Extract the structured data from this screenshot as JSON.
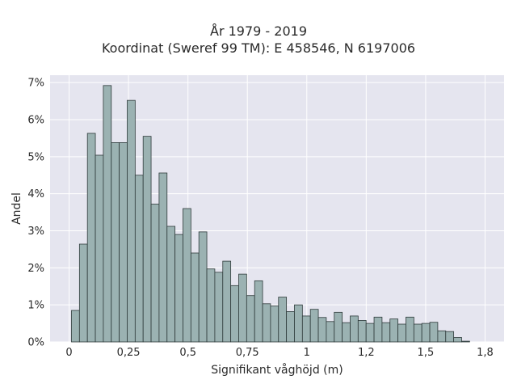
{
  "chart_data": {
    "type": "bar",
    "title": "År 1979 - 2019",
    "subtitle": "Koordinat (Sweref 99 TM): E 458546, N 6197006",
    "xlabel": "Signifikant våghöjd (m)",
    "ylabel": "Andel",
    "xlim": [
      -0.08,
      1.83
    ],
    "ylim": [
      0,
      7.2
    ],
    "grid": true,
    "bin_width": 0.0335,
    "bin_start": 0.01,
    "x_ticks": [
      {
        "value": 0,
        "label": "0"
      },
      {
        "value": 0.25,
        "label": "0,25"
      },
      {
        "value": 0.5,
        "label": "0,5"
      },
      {
        "value": 0.75,
        "label": "0,75"
      },
      {
        "value": 1,
        "label": "1"
      },
      {
        "value": 1.25,
        "label": "1,2"
      },
      {
        "value": 1.5,
        "label": "1,5"
      },
      {
        "value": 1.75,
        "label": "1,8"
      }
    ],
    "y_ticks": [
      {
        "value": 0,
        "label": "0%"
      },
      {
        "value": 1,
        "label": "1%"
      },
      {
        "value": 2,
        "label": "2%"
      },
      {
        "value": 3,
        "label": "3%"
      },
      {
        "value": 4,
        "label": "4%"
      },
      {
        "value": 5,
        "label": "5%"
      },
      {
        "value": 6,
        "label": "6%"
      },
      {
        "value": 7,
        "label": "7%"
      }
    ],
    "values": [
      0.85,
      2.64,
      5.63,
      5.04,
      6.92,
      5.38,
      5.38,
      6.52,
      4.5,
      5.55,
      3.72,
      4.56,
      3.12,
      2.9,
      3.6,
      2.4,
      2.97,
      1.97,
      1.88,
      2.18,
      1.52,
      1.83,
      1.25,
      1.65,
      1.03,
      0.97,
      1.21,
      0.82,
      1.0,
      0.7,
      0.88,
      0.66,
      0.55,
      0.8,
      0.52,
      0.7,
      0.58,
      0.5,
      0.67,
      0.52,
      0.62,
      0.48,
      0.67,
      0.48,
      0.5,
      0.53,
      0.3,
      0.28,
      0.12,
      0.02
    ],
    "colors": {
      "bar_fill": "#9bb2b2",
      "bar_edge": "#2f3b3b",
      "plot_background": "#e5e5ef",
      "grid": "#ffffff"
    }
  }
}
